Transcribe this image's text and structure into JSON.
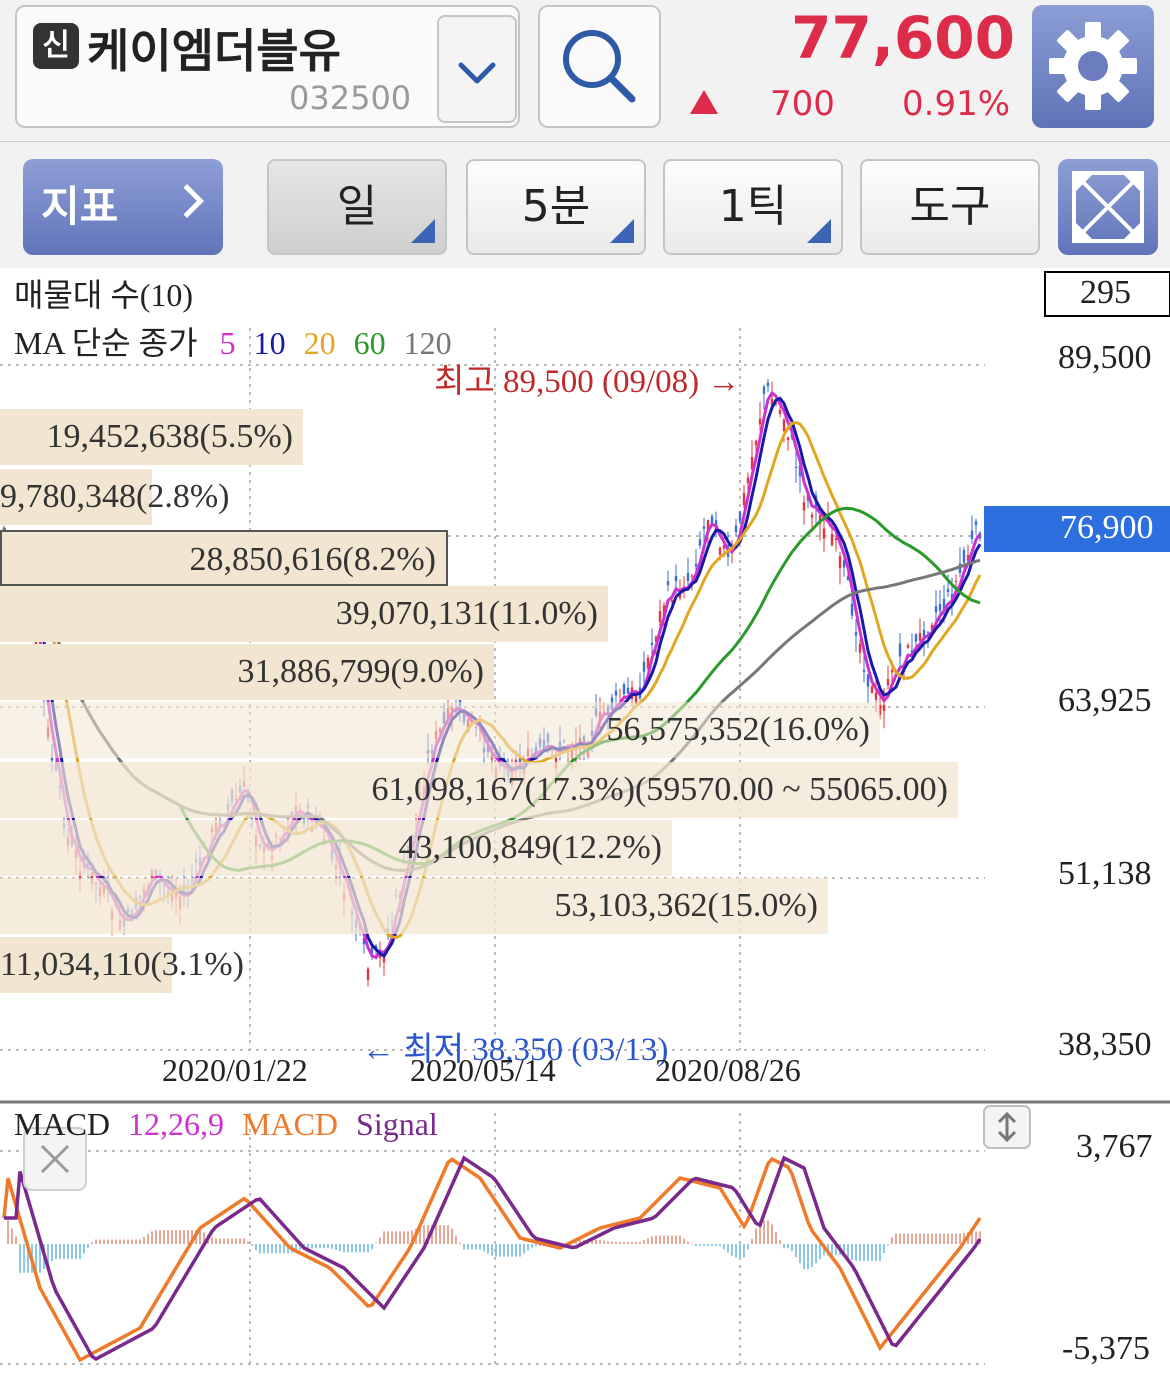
{
  "stock": {
    "badge": "신",
    "name": "케이엠더블유",
    "code": "032500"
  },
  "price": {
    "current": "77,600",
    "change_amount": "700",
    "change_rate": "0.91%",
    "color": "#dd2b4a"
  },
  "toolbar": {
    "indicator_label": "지표",
    "period_day": "일",
    "period_5min": "5분",
    "period_1tick": "1틱",
    "tools": "도구"
  },
  "chart": {
    "volume_profile_title": "매물대 수(10)",
    "ma_title": "MA 단순 종가",
    "ma_periods": [
      {
        "label": "5",
        "color": "#cc33cc"
      },
      {
        "label": "10",
        "color": "#1a1aaa"
      },
      {
        "label": "20",
        "color": "#e0a822"
      },
      {
        "label": "60",
        "color": "#2a9a2a"
      },
      {
        "label": "120",
        "color": "#777777"
      }
    ],
    "count_box": "295",
    "y_labels": [
      "89,500",
      "63,925",
      "51,138",
      "38,350"
    ],
    "current_price_tag": "76,900",
    "high_annotation": "최고 89,500 (09/08) →",
    "low_annotation": "← 최저 38,350 (03/13)",
    "dates": [
      "2020/01/22",
      "2020/05/14",
      "2020/08/26"
    ],
    "volume_profile": [
      "19,452,638(5.5%)",
      "9,780,348(2.8%)",
      "28,850,616(8.2%)",
      "39,070,131(11.0%)",
      "31,886,799(9.0%)",
      "56,575,352(16.0%)",
      "61,098,167(17.3%)(59570.00 ~ 55065.00)",
      "43,100,849(12.2%)",
      "53,103,362(15.0%)",
      "11,034,110(3.1%)"
    ]
  },
  "macd": {
    "title": "MACD",
    "params": "12,26,9",
    "macd_label": "MACD",
    "signal_label": "Signal",
    "y_top": "3,767",
    "y_bottom": "-5,375"
  }
}
